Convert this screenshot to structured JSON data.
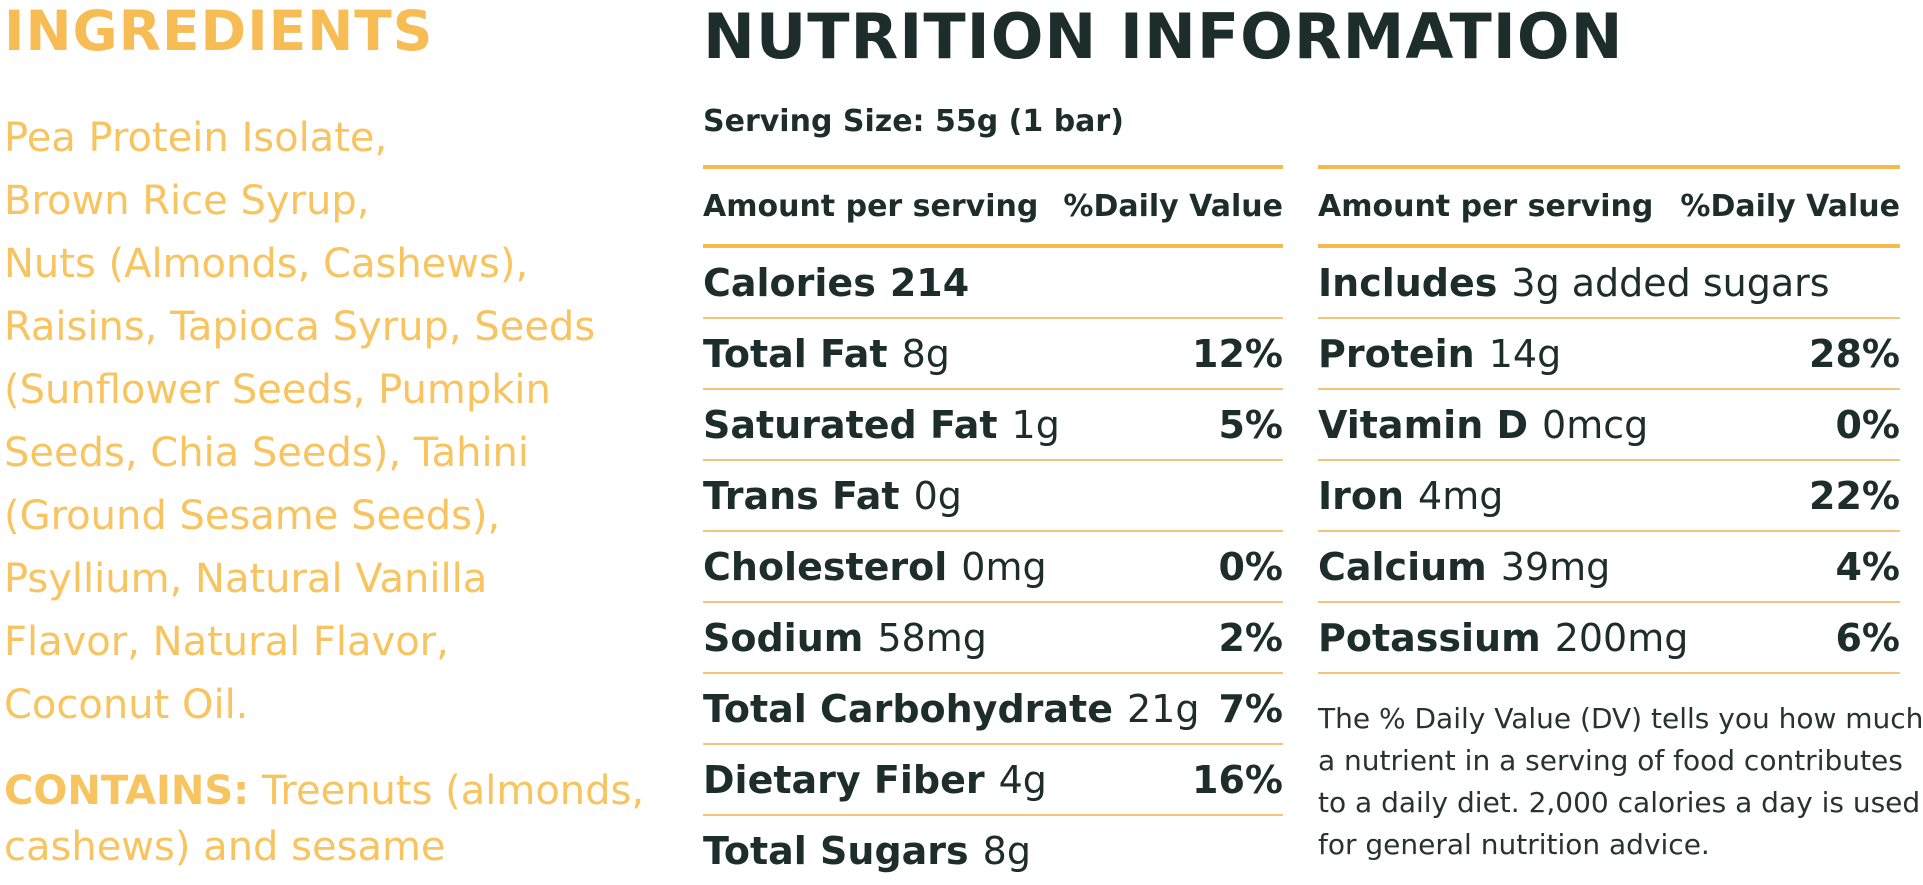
{
  "ingredients": {
    "heading": "INGREDIENTS",
    "lines": [
      "Pea Protein Isolate,",
      "Brown Rice Syrup,",
      "Nuts (Almonds, Cashews),",
      "Raisins, Tapioca Syrup, Seeds",
      "(Sunflower Seeds, Pumpkin",
      "Seeds, Chia Seeds), Tahini",
      "(Ground Sesame Seeds),",
      "Psyllium, Natural Vanilla",
      "Flavor, Natural Flavor,",
      "Coconut Oil."
    ],
    "contains_label": "CONTAINS:",
    "contains_line1": "Treenuts (almonds,",
    "contains_line2": "cashews) and sesame"
  },
  "nutrition": {
    "heading": "NUTRITION INFORMATION",
    "serving_size": "Serving Size: 55g  (1 bar)",
    "header_amount": "Amount per serving",
    "header_dv": "%Daily Value",
    "left_rows": [
      {
        "name": "Calories",
        "amount": "214",
        "dv": ""
      },
      {
        "name": "Total Fat",
        "amount": "8g",
        "dv": "12%"
      },
      {
        "name": "Saturated Fat",
        "amount": "1g",
        "dv": "5%"
      },
      {
        "name": "Trans Fat",
        "amount": "0g",
        "dv": ""
      },
      {
        "name": "Cholesterol",
        "amount": "0mg",
        "dv": "0%"
      },
      {
        "name": "Sodium",
        "amount": "58mg",
        "dv": "2%"
      },
      {
        "name": "Total Carbohydrate",
        "amount": "21g",
        "dv": "7%"
      },
      {
        "name": "Dietary Fiber",
        "amount": "4g",
        "dv": "16%"
      },
      {
        "name": "Total Sugars",
        "amount": "8g",
        "dv": ""
      }
    ],
    "right_rows": [
      {
        "name": "Includes",
        "amount": "3g added sugars",
        "dv": ""
      },
      {
        "name": "Protein",
        "amount": "14g",
        "dv": "28%"
      },
      {
        "name": "Vitamin D",
        "amount": "0mcg",
        "dv": "0%"
      },
      {
        "name": "Iron",
        "amount": "4mg",
        "dv": "22%"
      },
      {
        "name": "Calcium",
        "amount": "39mg",
        "dv": "4%"
      },
      {
        "name": "Potassium",
        "amount": "200mg",
        "dv": "6%"
      }
    ],
    "footnote_lines": [
      "The % Daily Value (DV) tells you how much",
      "a nutrient in a serving of food contributes",
      "to a daily diet. 2,000 calories a day is used",
      "for general nutrition advice."
    ]
  },
  "colors": {
    "ingredients_text": "#f8c45f",
    "nutrition_text": "#1d2d29",
    "divider": "#f6b94c"
  }
}
